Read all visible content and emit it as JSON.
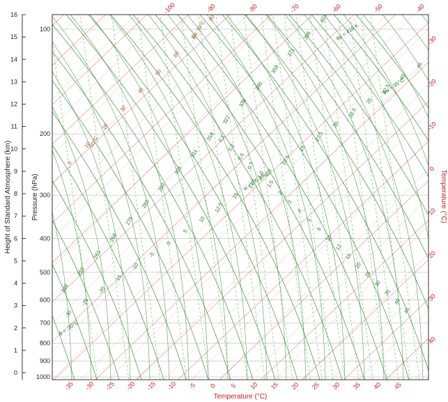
{
  "chart_data": {
    "type": "skew-t log-p thermodynamic diagram",
    "title": "",
    "left_axis": {
      "label": "Height of Standard Atmosphere (km)",
      "ticks": [
        "0",
        "1",
        "2",
        "3",
        "4",
        "5",
        "6",
        "7",
        "8",
        "9",
        "10",
        "11",
        "12",
        "13",
        "14",
        "15",
        "16"
      ]
    },
    "pressure_axis": {
      "label": "Pressure (hPa)",
      "ticks": [
        "100",
        "200",
        "300",
        "400",
        "500",
        "600",
        "700",
        "800",
        "900",
        "1000"
      ]
    },
    "bottom_axis": {
      "label": "Temperature (°C)",
      "ticks": [
        "-35",
        "-30",
        "-25",
        "-20",
        "-15",
        "-10",
        "-5",
        "0",
        "5",
        "10",
        "15",
        "20",
        "25",
        "30",
        "35",
        "40",
        "45"
      ]
    },
    "top_axis": {
      "ticks": [
        "-100",
        "-90",
        "-80",
        "-70",
        "-60",
        "-50",
        "-40"
      ]
    },
    "right_axis": {
      "label": "Temperature (°C)",
      "ticks": [
        "-30",
        "-20",
        "-10",
        "0",
        "10",
        "20",
        "30",
        "40"
      ]
    },
    "dry_adiabat_labels": [
      "249",
      "255",
      "261",
      "268",
      "275",
      "283",
      "292",
      "301",
      "311",
      "318",
      "327",
      "336",
      "346",
      "358",
      "371",
      "386",
      "403"
    ],
    "dry_adiabat_annotations": [
      "θ = -30°C",
      "θe = 419 K"
    ],
    "moist_adiabat_labels": [
      "-30",
      "-25",
      "-20",
      "-15",
      "-10",
      "-5",
      "0",
      "5",
      "10",
      "12.5",
      "15",
      "17.5",
      "20",
      "22.5",
      "25",
      "27.5",
      "30",
      "32.5",
      "35",
      "37.5",
      "40",
      "45"
    ],
    "moist_adiabat_annotation": "θw = 35°C",
    "mixing_ratio_labels": [
      "0.1",
      "0.2",
      "0.5",
      "0.7",
      "1.0",
      "1.5",
      "2",
      "3",
      "4",
      "5",
      "8",
      "10",
      "12",
      "15",
      "20",
      "25",
      "30",
      "35",
      "40",
      "45"
    ],
    "mixing_ratio_annotation": "w = 0.5 g/kg",
    "brown_line_labels": [
      "0",
      "10",
      "20",
      "30",
      "40",
      "50",
      "60",
      "70",
      "80"
    ],
    "brown_line_annotations": [
      "-10°C",
      "θ = 70°C"
    ],
    "colors": {
      "isotherm_and_isobar": "#d26a6a",
      "dry_adiabat": "#3d8a3d",
      "moist_adiabat": "#1e7a1e",
      "mixing_ratio": "#33aa33",
      "brown_lines": "#b5704a",
      "text": "#222222",
      "accent_red": "#c41e1e"
    }
  }
}
